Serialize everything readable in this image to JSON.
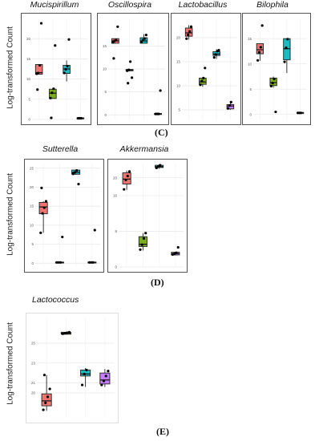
{
  "y_axis_label": "Log-transformed Count",
  "panel_labels": {
    "C": "(C)",
    "D": "(D)",
    "E": "(E)"
  },
  "group_colors": {
    "g1": "#f07470",
    "g2": "#7aad1f",
    "g3": "#1eb9c2",
    "g4": "#c77cff"
  },
  "chart_data": [
    {
      "type": "box",
      "title": "Mucispirillum",
      "figure_panel": "C",
      "ylim": [
        0,
        25
      ],
      "yticks": [
        0,
        5,
        10,
        15,
        20
      ],
      "ytick_labels": [
        "0",
        "5",
        "10",
        "15",
        "20"
      ],
      "groups": [
        {
          "color": "g1",
          "q1": 11.2,
          "median": 11.6,
          "q3": 13.6,
          "whisker_low": 11.2,
          "whisker_high": 13.6,
          "points": [
            11.3,
            11.5,
            13.4,
            23.8,
            7.4
          ]
        },
        {
          "color": "g2",
          "q1": 5.2,
          "median": 6.5,
          "q3": 7.5,
          "whisker_low": 5.2,
          "whisker_high": 7.5,
          "points": [
            5.3,
            6.6,
            7.6,
            18.3,
            0.4
          ]
        },
        {
          "color": "g3",
          "q1": 11.4,
          "median": 12.5,
          "q3": 13.4,
          "whisker_low": 9.4,
          "whisker_high": 14.6,
          "points": [
            11.5,
            12.4,
            13.2,
            19.8
          ]
        },
        {
          "color": "g4",
          "q1": 0.2,
          "median": 0.3,
          "q3": 0.4,
          "whisker_low": 0.2,
          "whisker_high": 0.4,
          "points": [
            0.3,
            0.3,
            0.3
          ]
        }
      ]
    },
    {
      "type": "box",
      "title": "Oscillospira",
      "figure_panel": "C",
      "ylim": [
        -1,
        21
      ],
      "yticks": [
        0,
        5,
        10,
        15
      ],
      "ytick_labels": [
        "0",
        "5",
        "10",
        "15"
      ],
      "groups": [
        {
          "color": "g1",
          "q1": 15.6,
          "median": 16.1,
          "q3": 16.6,
          "whisker_low": 15.6,
          "whisker_high": 16.6,
          "points": [
            15.8,
            16.1,
            16.3,
            19.2,
            12.3
          ]
        },
        {
          "color": "g2",
          "q1": 9.6,
          "median": 9.7,
          "q3": 9.9,
          "whisker_low": 9.5,
          "whisker_high": 9.9,
          "points": [
            9.6,
            9.8,
            11.6,
            8.1,
            6.9
          ]
        },
        {
          "color": "g3",
          "q1": 15.6,
          "median": 16.1,
          "q3": 16.8,
          "whisker_low": 15.6,
          "whisker_high": 17.6,
          "points": [
            15.9,
            16.3,
            16.6,
            17.4
          ]
        },
        {
          "color": "g4",
          "q1": 0.1,
          "median": 0.2,
          "q3": 0.3,
          "whisker_low": 0.1,
          "whisker_high": 0.3,
          "points": [
            0.2,
            0.2,
            0.2,
            5.3
          ]
        }
      ]
    },
    {
      "type": "box",
      "title": "Lactobacillus",
      "figure_panel": "C",
      "ylim": [
        3,
        24
      ],
      "yticks": [
        5,
        10,
        15,
        20
      ],
      "ytick_labels": [
        "5",
        "10",
        "15",
        "20"
      ],
      "groups": [
        {
          "color": "g1",
          "q1": 20.3,
          "median": 21.0,
          "q3": 22.0,
          "whisker_low": 19.6,
          "whisker_high": 22.6,
          "points": [
            19.8,
            20.6,
            21.3,
            22.3
          ]
        },
        {
          "color": "g2",
          "q1": 10.3,
          "median": 10.8,
          "q3": 11.6,
          "whisker_low": 9.8,
          "whisker_high": 11.8,
          "points": [
            10.2,
            11.0,
            11.6,
            13.7
          ]
        },
        {
          "color": "g3",
          "q1": 16.3,
          "median": 16.6,
          "q3": 17.1,
          "whisker_low": 15.6,
          "whisker_high": 17.6,
          "points": [
            15.9,
            16.5,
            17.2,
            17.4
          ]
        },
        {
          "color": "g4",
          "q1": 5.2,
          "median": 5.8,
          "q3": 6.1,
          "whisker_low": 5.0,
          "whisker_high": 6.8,
          "points": [
            5.3,
            5.9,
            6.6
          ]
        }
      ]
    },
    {
      "type": "box",
      "title": "Bilophila",
      "figure_panel": "C",
      "ylim": [
        -1,
        19
      ],
      "yticks": [
        0,
        5,
        10,
        15
      ],
      "ytick_labels": [
        "0",
        "5",
        "10",
        "15"
      ],
      "groups": [
        {
          "color": "g1",
          "q1": 12.0,
          "median": 12.8,
          "q3": 14.0,
          "whisker_low": 10.6,
          "whisker_high": 14.0,
          "points": [
            10.7,
            12.3,
            13.3,
            17.6
          ]
        },
        {
          "color": "g2",
          "q1": 5.7,
          "median": 6.3,
          "q3": 7.2,
          "whisker_low": 5.3,
          "whisker_high": 7.5,
          "points": [
            5.6,
            6.2,
            7.0,
            0.5
          ]
        },
        {
          "color": "g3",
          "q1": 10.8,
          "median": 13.0,
          "q3": 15.0,
          "whisker_low": 8.2,
          "whisker_high": 15.0,
          "points": [
            10.4,
            13.2,
            14.9
          ]
        },
        {
          "color": "g4",
          "q1": 0.2,
          "median": 0.3,
          "q3": 0.4,
          "whisker_low": 0.2,
          "whisker_high": 0.4,
          "points": [
            0.3,
            0.3,
            0.3
          ]
        }
      ]
    },
    {
      "type": "box",
      "title": "Sutterella",
      "figure_panel": "D",
      "ylim": [
        -1,
        26
      ],
      "yticks": [
        0,
        5,
        10,
        15,
        20,
        25
      ],
      "ytick_labels": [
        "0",
        "5",
        "10",
        "15",
        "20",
        "25"
      ],
      "groups": [
        {
          "color": "g1",
          "q1": 13.0,
          "median": 14.8,
          "q3": 16.0,
          "whisker_low": 8.0,
          "whisker_high": 16.3,
          "points": [
            8.0,
            13.1,
            14.6,
            16.3,
            19.8
          ]
        },
        {
          "color": "g2",
          "q1": 0.1,
          "median": 0.2,
          "q3": 0.3,
          "whisker_low": 0.1,
          "whisker_high": 0.3,
          "points": [
            0.2,
            0.2,
            0.2,
            6.9
          ]
        },
        {
          "color": "g3",
          "q1": 23.4,
          "median": 23.9,
          "q3": 24.5,
          "whisker_low": 23.3,
          "whisker_high": 24.6,
          "points": [
            23.5,
            23.9,
            24.4,
            20.8
          ]
        },
        {
          "color": "g4",
          "q1": 0.1,
          "median": 0.2,
          "q3": 0.3,
          "whisker_low": 0.1,
          "whisker_high": 0.3,
          "points": [
            0.2,
            0.2,
            0.2,
            8.7
          ]
        }
      ]
    },
    {
      "type": "box",
      "title": "Akkermansia",
      "figure_panel": "D",
      "ylim": [
        0,
        23
      ],
      "yticks": [
        0,
        8,
        16,
        20
      ],
      "ytick_labels": [
        "0",
        "8",
        "16",
        "20"
      ],
      "groups": [
        {
          "color": "g1",
          "q1": 18.6,
          "median": 19.7,
          "q3": 21.1,
          "whisker_low": 17.3,
          "whisker_high": 21.6,
          "points": [
            17.4,
            19.5,
            20.4,
            21.4
          ]
        },
        {
          "color": "g2",
          "q1": 4.6,
          "median": 5.1,
          "q3": 6.8,
          "whisker_low": 3.7,
          "whisker_high": 7.6,
          "points": [
            3.9,
            5.0,
            6.4,
            7.6
          ]
        },
        {
          "color": "g3",
          "q1": 22.3,
          "median": 22.5,
          "q3": 22.8,
          "whisker_low": 22.0,
          "whisker_high": 23.0,
          "points": [
            22.2,
            22.5,
            22.8
          ]
        },
        {
          "color": "g4",
          "q1": 2.7,
          "median": 3.0,
          "q3": 3.3,
          "whisker_low": 2.6,
          "whisker_high": 3.3,
          "points": [
            2.8,
            3.0,
            3.2,
            4.4
          ]
        }
      ]
    },
    {
      "type": "box",
      "title": "Lactococcus",
      "figure_panel": "E",
      "ylim": [
        17.5,
        27.5
      ],
      "yticks": [
        20,
        21,
        23,
        25
      ],
      "ytick_labels": [
        "20",
        "21",
        "23",
        "25"
      ],
      "groups": [
        {
          "color": "g1",
          "q1": 18.7,
          "median": 19.2,
          "q3": 19.9,
          "whisker_low": 18.2,
          "whisker_high": 21.8,
          "points": [
            18.3,
            19.0,
            19.6,
            20.4,
            21.8
          ]
        },
        {
          "color": "g2",
          "q1": 25.9,
          "median": 26.0,
          "q3": 26.1,
          "whisker_low": 25.9,
          "whisker_high": 26.1,
          "points": [
            25.95,
            26.0,
            26.05,
            26.1
          ]
        },
        {
          "color": "g3",
          "q1": 21.7,
          "median": 21.9,
          "q3": 22.3,
          "whisker_low": 20.6,
          "whisker_high": 22.5,
          "points": [
            20.8,
            21.9,
            22.3
          ]
        },
        {
          "color": "g4",
          "q1": 20.9,
          "median": 21.3,
          "q3": 22.0,
          "whisker_low": 20.6,
          "whisker_high": 22.4,
          "points": [
            20.8,
            21.2,
            21.7,
            22.2
          ]
        }
      ]
    }
  ]
}
